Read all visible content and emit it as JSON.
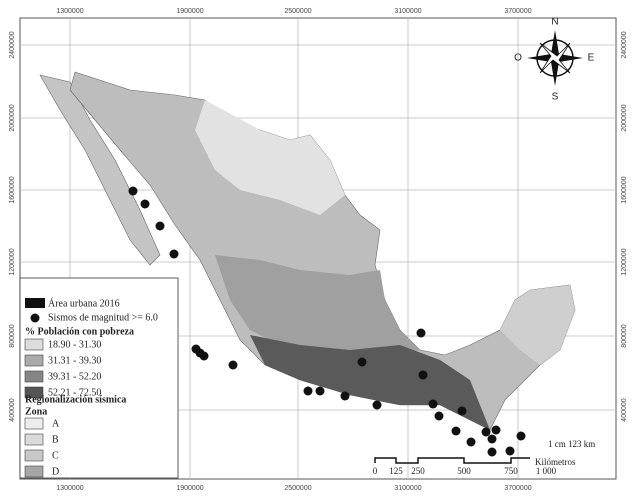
{
  "grid": {
    "x_labels": [
      "1300000",
      "1900000",
      "2500000",
      "3100000",
      "3700000"
    ],
    "y_labels": [
      "2400000",
      "2000000",
      "1600000",
      "1200000",
      "800000",
      "400000"
    ]
  },
  "compass": {
    "north": "N",
    "east": "E",
    "south": "S",
    "west": "O"
  },
  "legend": {
    "urban": "Área urbana 2016",
    "earthquakes": "Sismos de magnitud >= 6.0",
    "poverty_title": "% Población con pobreza",
    "poverty_classes": [
      "18.90 - 31.30",
      "31.31 - 39.30",
      "39.31 - 52.20",
      "52.21 - 72.50"
    ],
    "seismic_title": "Regionalización sísmica",
    "zone_title": "Zona",
    "zones": [
      "A",
      "B",
      "C",
      "D"
    ]
  },
  "scale": {
    "ratio": "1 cm  123 km",
    "unit": "Kilómetros",
    "labels": [
      "0",
      "125",
      "250",
      "500",
      "750",
      "1 000"
    ]
  }
}
